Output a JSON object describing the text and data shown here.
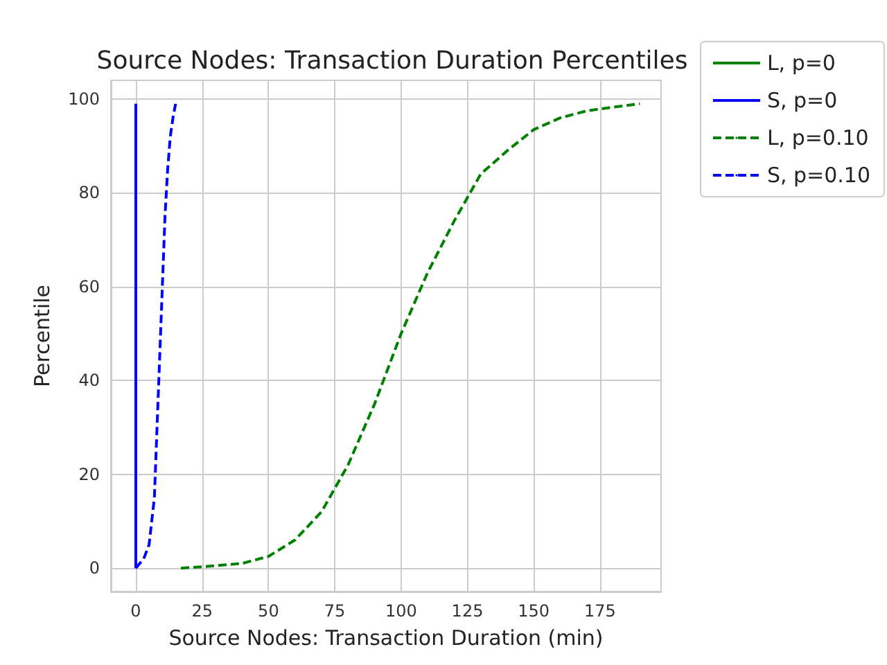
{
  "chart_data": {
    "type": "line",
    "title": "Source Nodes: Transaction Duration Percentiles",
    "xlabel": "Source Nodes: Transaction Duration (min)",
    "ylabel": "Percentile",
    "xlim": [
      -9.4,
      198
    ],
    "xticks": [
      0,
      25,
      50,
      75,
      100,
      125,
      150,
      175
    ],
    "ylim": [
      -5,
      104
    ],
    "yticks": [
      0,
      20,
      40,
      60,
      80,
      100
    ],
    "grid": true,
    "legend": "top right",
    "marker": "none",
    "series": [
      {
        "name": "L, p=0",
        "color": "#008000",
        "line_style": "solid"
      },
      {
        "name": "S, p=0",
        "color": "#0000ff",
        "line_style": "solid",
        "x": [
          0,
          0
        ],
        "values": [
          0,
          99
        ]
      },
      {
        "name": "L, p=0.10",
        "color": "#008000",
        "line_style": "dashed",
        "x": [
          17,
          25,
          40,
          50,
          60,
          70,
          80,
          90,
          100,
          110,
          120,
          125,
          130,
          140,
          150,
          160,
          170,
          180,
          190
        ],
        "values": [
          0,
          0.3,
          1,
          2.5,
          6,
          12,
          22,
          35,
          50,
          63,
          74,
          79,
          84,
          89,
          93.5,
          96,
          97.5,
          98.3,
          99
        ]
      },
      {
        "name": "S, p=0.10",
        "color": "#0000ff",
        "line_style": "dashed",
        "x": [
          0,
          3,
          5,
          7,
          8,
          9,
          10,
          11,
          12,
          13,
          14,
          15
        ],
        "values": [
          0,
          2,
          5,
          15,
          30,
          45,
          60,
          75,
          85,
          92,
          96,
          99
        ]
      }
    ]
  }
}
